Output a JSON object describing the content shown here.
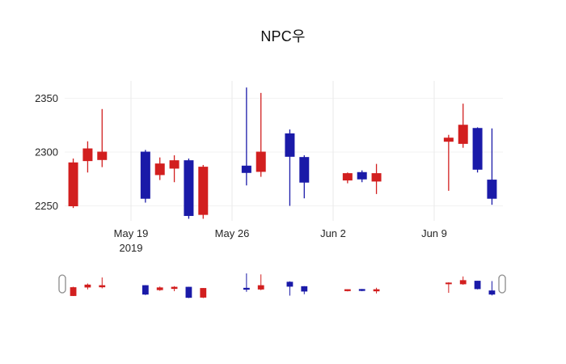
{
  "chart_data": {
    "type": "candlestick",
    "title": "NPC우",
    "xlabel": "",
    "ylabel": "",
    "ylim": [
      2235,
      2365
    ],
    "grid": true,
    "legend": "none",
    "colors": {
      "up": "#d21f1f",
      "down": "#1a1aa8",
      "grid_v": "#e9e9e9",
      "grid_h": "#f2f2f2",
      "tick_text": "#262626",
      "handle_stroke": "#8c8c8c",
      "handle_fill": "#ffffff"
    },
    "y_ticks": [
      {
        "value": 2250,
        "label": "2250"
      },
      {
        "value": 2300,
        "label": "2300"
      },
      {
        "value": 2350,
        "label": "2350"
      }
    ],
    "x_ticks": [
      {
        "day": 4,
        "label": "May 19",
        "sublabel": "2019"
      },
      {
        "day": 11,
        "label": "May 26",
        "sublabel": ""
      },
      {
        "day": 18,
        "label": "Jun 2",
        "sublabel": ""
      },
      {
        "day": 25,
        "label": "Jun 9",
        "sublabel": ""
      }
    ],
    "candles": [
      {
        "date": "2019-05-15",
        "day": 0,
        "open": 2250,
        "high": 2294,
        "low": 2248,
        "close": 2290
      },
      {
        "date": "2019-05-16",
        "day": 1,
        "open": 2292,
        "high": 2310,
        "low": 2281,
        "close": 2303
      },
      {
        "date": "2019-05-17",
        "day": 2,
        "open": 2293,
        "high": 2340,
        "low": 2286,
        "close": 2300
      },
      {
        "date": "2019-05-20",
        "day": 5,
        "open": 2300,
        "high": 2302,
        "low": 2253,
        "close": 2257
      },
      {
        "date": "2019-05-21",
        "day": 6,
        "open": 2279,
        "high": 2295,
        "low": 2274,
        "close": 2289
      },
      {
        "date": "2019-05-22",
        "day": 7,
        "open": 2285,
        "high": 2297,
        "low": 2272,
        "close": 2292
      },
      {
        "date": "2019-05-23",
        "day": 8,
        "open": 2292,
        "high": 2294,
        "low": 2238,
        "close": 2241
      },
      {
        "date": "2019-05-24",
        "day": 9,
        "open": 2242,
        "high": 2288,
        "low": 2238,
        "close": 2286
      },
      {
        "date": "2019-05-27",
        "day": 12,
        "open": 2287,
        "high": 2360,
        "low": 2269,
        "close": 2281
      },
      {
        "date": "2019-05-28",
        "day": 13,
        "open": 2282,
        "high": 2355,
        "low": 2277,
        "close": 2300
      },
      {
        "date": "2019-05-30",
        "day": 15,
        "open": 2317,
        "high": 2321,
        "low": 2250,
        "close": 2296
      },
      {
        "date": "2019-05-31",
        "day": 16,
        "open": 2295,
        "high": 2297,
        "low": 2257,
        "close": 2272
      },
      {
        "date": "2019-06-03",
        "day": 19,
        "open": 2274,
        "high": 2281,
        "low": 2271,
        "close": 2280
      },
      {
        "date": "2019-06-04",
        "day": 20,
        "open": 2281,
        "high": 2283,
        "low": 2272,
        "close": 2275
      },
      {
        "date": "2019-06-05",
        "day": 21,
        "open": 2273,
        "high": 2289,
        "low": 2261,
        "close": 2280
      },
      {
        "date": "2019-06-10",
        "day": 26,
        "open": 2310,
        "high": 2316,
        "low": 2264,
        "close": 2313
      },
      {
        "date": "2019-06-11",
        "day": 27,
        "open": 2308,
        "high": 2345,
        "low": 2304,
        "close": 2325
      },
      {
        "date": "2019-06-12",
        "day": 28,
        "open": 2322,
        "high": 2323,
        "low": 2281,
        "close": 2284
      },
      {
        "date": "2019-06-13",
        "day": 29,
        "open": 2274,
        "high": 2322,
        "low": 2251,
        "close": 2257
      }
    ],
    "rangeslider": {
      "visible": true
    }
  }
}
